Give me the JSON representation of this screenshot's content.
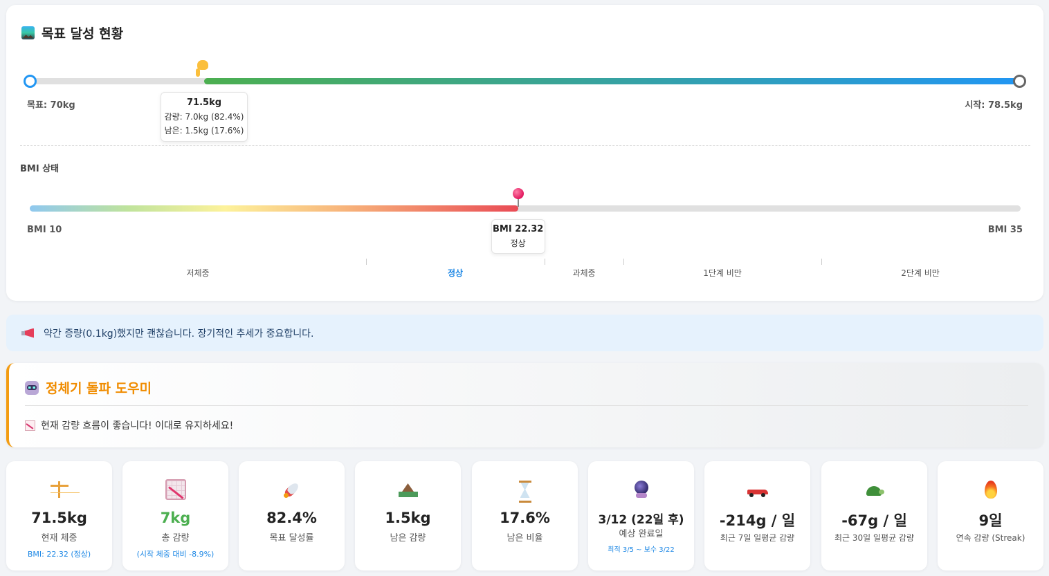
{
  "goal_card": {
    "title": "목표 달성 현황",
    "title_icon": "mountain-sunrise-icon",
    "goal_label": "목표: 70kg",
    "start_label": "시작: 78.5kg",
    "progress_fraction": 0.824,
    "pointer_icon": "pointing-hand-icon",
    "tooltip": {
      "current": "71.5kg",
      "lost": "감량: 7.0kg (82.4%)",
      "remaining": "남은: 1.5kg (17.6%)"
    },
    "colors": {
      "fill_start": "#4caf50",
      "fill_end": "#2196f3"
    }
  },
  "bmi": {
    "title": "BMI 상태",
    "min_label": "BMI 10",
    "max_label": "BMI 35",
    "min": 10,
    "max": 35,
    "value": 22.32,
    "tooltip_value": "BMI 22.32",
    "tooltip_status": "정상",
    "zones": [
      {
        "label": "저체중",
        "active": false
      },
      {
        "label": "정상",
        "active": true
      },
      {
        "label": "과체중",
        "active": false
      },
      {
        "label": "1단계 비만",
        "active": false
      },
      {
        "label": "2단계 비만",
        "active": false
      }
    ]
  },
  "notice": {
    "icon": "megaphone-icon",
    "text": "약간 증량(0.1kg)했지만 괜찮습니다. 장기적인 추세가 중요합니다."
  },
  "plateau": {
    "icon": "robot-icon",
    "title": "정체기 돌파 도우미",
    "message_icon": "chart-decreasing-icon",
    "message": "현재 감량 흐름이 좋습니다! 이대로 유지하세요!"
  },
  "stats": [
    {
      "icon": "balance-scale-icon",
      "value": "71.5kg",
      "label": "현재 체중",
      "sub": "BMI: 22.32 (정상)"
    },
    {
      "icon": "chart-decreasing-icon",
      "value": "7kg",
      "label": "총 감량",
      "sub": "(시작 체중 대비 -8.9%)"
    },
    {
      "icon": "rocket-icon",
      "value": "82.4%",
      "label": "목표 달성률",
      "sub": ""
    },
    {
      "icon": "mountain-icon",
      "value": "1.5kg",
      "label": "남은 감량",
      "sub": ""
    },
    {
      "icon": "hourglass-icon",
      "value": "17.6%",
      "label": "남은 비율",
      "sub": ""
    },
    {
      "icon": "crystal-ball-icon",
      "value": "3/12 (22일 후)",
      "label": "예상 완료일",
      "sub": "최적 3/5 ~ 보수 3/22"
    },
    {
      "icon": "race-car-icon",
      "value": "-214g / 일",
      "label": "최근 7일 일평균 감량",
      "sub": ""
    },
    {
      "icon": "turtle-icon",
      "value": "-67g / 일",
      "label": "최근 30일 일평균 감량",
      "sub": ""
    },
    {
      "icon": "fire-icon",
      "value": "9일",
      "label": "연속 감량 (Streak)",
      "sub": ""
    }
  ]
}
